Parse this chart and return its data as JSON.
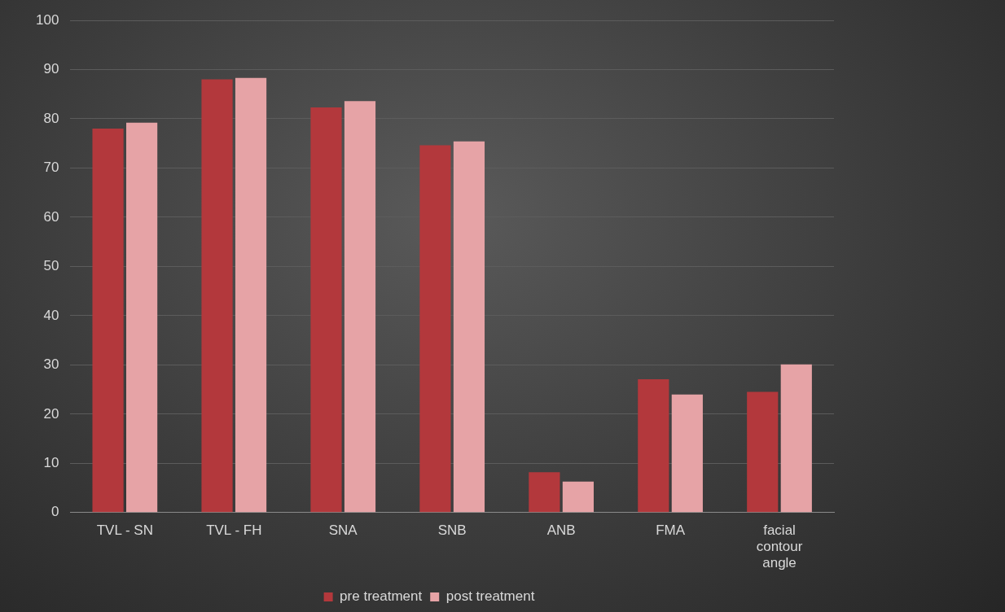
{
  "chart_data": {
    "type": "bar",
    "categories": [
      "TVL - SN",
      "TVL - FH",
      "SNA",
      "SNB",
      "ANB",
      "FMA",
      "facial contour angle"
    ],
    "series": [
      {
        "name": "pre treatment",
        "color": "#b3383c",
        "values": [
          78,
          88,
          82.3,
          74.6,
          8.2,
          27.1,
          24.5
        ]
      },
      {
        "name": "post treatment",
        "color": "#e6a3a6",
        "values": [
          79.2,
          88.3,
          83.6,
          75.4,
          6.3,
          24,
          30.1
        ]
      }
    ],
    "ylim": [
      0,
      100
    ],
    "yticks": [
      0,
      10,
      20,
      30,
      40,
      50,
      60,
      70,
      80,
      90,
      100
    ],
    "grid": "y",
    "legend": "bottom"
  }
}
